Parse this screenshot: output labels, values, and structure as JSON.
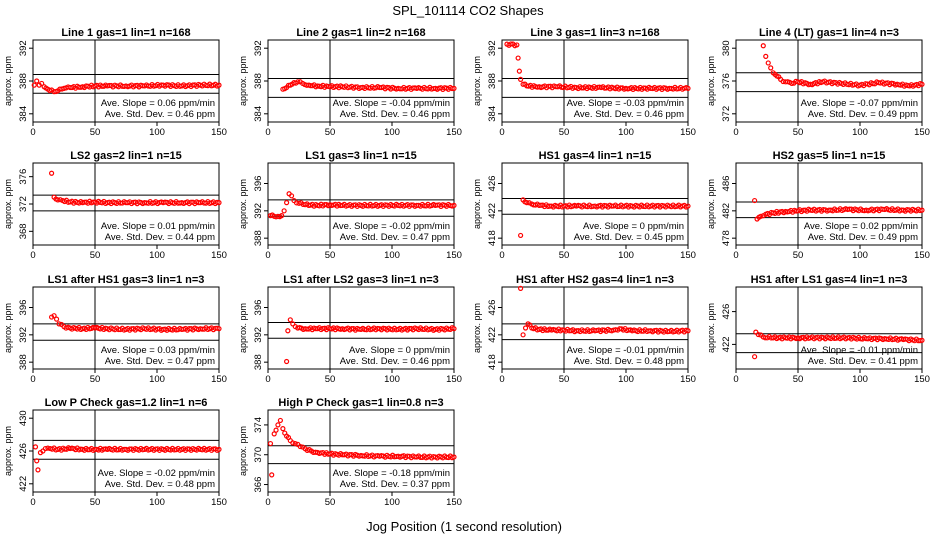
{
  "title": "SPL_101114  CO2 Shapes",
  "xlabel": "Jog Position (1 second resolution)",
  "point_color": "#ff0000",
  "line_color": "#000000",
  "chart_data": [
    {
      "type": "scatter",
      "title": "Line 1 gas=1 lin=1 n=168",
      "ylabel": "approx. ppm",
      "xlim": [
        0,
        150
      ],
      "ylim": [
        383,
        393
      ],
      "yticks": [
        384,
        388,
        392
      ],
      "xticks": [
        0,
        50,
        100,
        150
      ],
      "hlines": [
        388.8,
        386.5
      ],
      "vline": 50,
      "slope": "Ave. Slope = 0.06 ppm/min",
      "std": "Ave. Std. Dev. = 0.46 ppm",
      "points": [
        [
          1,
          387.5
        ],
        [
          3,
          388.0
        ],
        [
          5,
          387.5
        ],
        [
          7,
          387.7
        ],
        [
          9,
          387.3
        ],
        [
          12,
          387.0
        ],
        [
          15,
          386.9
        ],
        [
          17,
          386.7
        ],
        [
          20,
          386.8
        ],
        [
          25,
          387.1
        ],
        [
          30,
          387.2
        ],
        [
          40,
          387.3
        ],
        [
          50,
          387.4
        ],
        [
          60,
          387.4
        ],
        [
          75,
          387.4
        ],
        [
          90,
          387.4
        ],
        [
          105,
          387.5
        ],
        [
          120,
          387.4
        ],
        [
          135,
          387.5
        ],
        [
          150,
          387.5
        ]
      ]
    },
    {
      "type": "scatter",
      "title": "Line 2 gas=1 lin=2 n=168",
      "ylabel": "approx. ppm",
      "xlim": [
        0,
        150
      ],
      "ylim": [
        383,
        393
      ],
      "yticks": [
        384,
        388,
        392
      ],
      "xticks": [
        0,
        50,
        100,
        150
      ],
      "hlines": [
        388.3,
        386.0
      ],
      "vline": 50,
      "slope": "Ave. Slope = -0.04 ppm/min",
      "std": "Ave. Std. Dev. = 0.46 ppm",
      "points": [
        [
          12,
          387.0
        ],
        [
          15,
          387.2
        ],
        [
          18,
          387.5
        ],
        [
          21,
          387.8
        ],
        [
          24,
          387.9
        ],
        [
          28,
          387.7
        ],
        [
          33,
          387.5
        ],
        [
          40,
          387.4
        ],
        [
          50,
          387.3
        ],
        [
          60,
          387.3
        ],
        [
          75,
          387.2
        ],
        [
          90,
          387.2
        ],
        [
          105,
          387.1
        ],
        [
          120,
          387.1
        ],
        [
          135,
          387.1
        ],
        [
          150,
          387.1
        ]
      ]
    },
    {
      "type": "scatter",
      "title": "Line 3 gas=1 lin=3 n=168",
      "ylabel": "approx. ppm",
      "xlim": [
        0,
        150
      ],
      "ylim": [
        383,
        393
      ],
      "yticks": [
        384,
        388,
        392
      ],
      "xticks": [
        0,
        50,
        100,
        150
      ],
      "hlines": [
        388.3,
        386.0
      ],
      "vline": 50,
      "slope": "Ave. Slope = -0.03 ppm/min",
      "std": "Ave. Std. Dev. = 0.46 ppm",
      "points": [
        [
          4,
          392.5
        ],
        [
          12,
          392.4
        ],
        [
          13,
          390.8
        ],
        [
          14,
          389.2
        ],
        [
          15,
          388.2
        ],
        [
          17,
          387.6
        ],
        [
          20,
          387.4
        ],
        [
          30,
          387.3
        ],
        [
          45,
          387.3
        ],
        [
          60,
          387.2
        ],
        [
          80,
          387.2
        ],
        [
          100,
          387.1
        ],
        [
          120,
          387.1
        ],
        [
          135,
          387.1
        ],
        [
          150,
          387.1
        ]
      ]
    },
    {
      "type": "scatter",
      "title": "Line 4 (LT) gas=1 lin=4 n=3",
      "ylabel": "approx. ppm",
      "xlim": [
        0,
        150
      ],
      "ylim": [
        371,
        381
      ],
      "yticks": [
        372,
        376,
        380
      ],
      "xticks": [
        0,
        50,
        100,
        150
      ],
      "hlines": [
        377.0,
        374.7
      ],
      "vline": 50,
      "slope": "Ave. Slope = -0.07 ppm/min",
      "std": "Ave. Std. Dev. = 0.49 ppm",
      "points": [
        [
          22,
          380.3
        ],
        [
          24,
          379.0
        ],
        [
          26,
          378.2
        ],
        [
          28,
          377.6
        ],
        [
          30,
          377.0
        ],
        [
          33,
          376.6
        ],
        [
          36,
          376.2
        ],
        [
          40,
          375.9
        ],
        [
          45,
          375.7
        ],
        [
          50,
          375.9
        ],
        [
          60,
          375.6
        ],
        [
          70,
          375.9
        ],
        [
          85,
          375.7
        ],
        [
          100,
          375.5
        ],
        [
          115,
          375.8
        ],
        [
          130,
          375.6
        ],
        [
          140,
          375.4
        ],
        [
          150,
          375.6
        ]
      ]
    },
    {
      "type": "scatter",
      "title": "LS2 gas=2 lin=1 n=15",
      "ylabel": "approx. ppm",
      "xlim": [
        0,
        150
      ],
      "ylim": [
        366,
        378
      ],
      "yticks": [
        368,
        372,
        376
      ],
      "xticks": [
        0,
        50,
        100,
        150
      ],
      "hlines": [
        373.3,
        371.0
      ],
      "vline": 50,
      "slope": "Ave. Slope = 0.01 ppm/min",
      "std": "Ave. Std. Dev. = 0.44 ppm",
      "points": [
        [
          15,
          376.5
        ],
        [
          17,
          373.0
        ],
        [
          20,
          372.6
        ],
        [
          24,
          372.5
        ],
        [
          30,
          372.3
        ],
        [
          40,
          372.2
        ],
        [
          50,
          372.3
        ],
        [
          60,
          372.2
        ],
        [
          75,
          372.2
        ],
        [
          90,
          372.2
        ],
        [
          105,
          372.2
        ],
        [
          120,
          372.2
        ],
        [
          135,
          372.2
        ],
        [
          150,
          372.2
        ]
      ]
    },
    {
      "type": "scatter",
      "title": "LS1 gas=3 lin=1 n=15",
      "ylabel": "approx. ppm",
      "xlim": [
        0,
        150
      ],
      "ylim": [
        387,
        399
      ],
      "yticks": [
        388,
        392,
        396
      ],
      "xticks": [
        0,
        50,
        100,
        150
      ],
      "hlines": [
        393.6,
        391.2
      ],
      "vline": 50,
      "slope": "Ave. Slope = -0.02 ppm/min",
      "std": "Ave. Std. Dev. = 0.47 ppm",
      "points": [
        [
          2,
          391.3
        ],
        [
          5,
          391.2
        ],
        [
          8,
          391.2
        ],
        [
          11,
          391.3
        ],
        [
          13,
          392.0
        ],
        [
          15,
          393.2
        ],
        [
          17,
          394.5
        ],
        [
          19,
          394.2
        ],
        [
          21,
          393.5
        ],
        [
          25,
          393.1
        ],
        [
          30,
          392.9
        ],
        [
          40,
          392.8
        ],
        [
          50,
          392.9
        ],
        [
          60,
          392.8
        ],
        [
          75,
          392.8
        ],
        [
          90,
          392.8
        ],
        [
          105,
          392.8
        ],
        [
          120,
          392.8
        ],
        [
          135,
          392.8
        ],
        [
          150,
          392.8
        ]
      ]
    },
    {
      "type": "scatter",
      "title": "HS1 gas=4 lin=1 n=15",
      "ylabel": "approx. ppm",
      "xlim": [
        0,
        150
      ],
      "ylim": [
        417,
        429
      ],
      "yticks": [
        418,
        422,
        426
      ],
      "xticks": [
        0,
        50,
        100,
        150
      ],
      "hlines": [
        423.8,
        421.5
      ],
      "vline": 50,
      "slope": "Ave. Slope = 0 ppm/min",
      "std": "Ave. Std. Dev. = 0.45 ppm",
      "points": [
        [
          15,
          418.4
        ],
        [
          17,
          423.6
        ],
        [
          20,
          423.2
        ],
        [
          24,
          423.0
        ],
        [
          30,
          422.8
        ],
        [
          40,
          422.7
        ],
        [
          50,
          422.7
        ],
        [
          60,
          422.7
        ],
        [
          75,
          422.7
        ],
        [
          90,
          422.7
        ],
        [
          105,
          422.7
        ],
        [
          120,
          422.7
        ],
        [
          135,
          422.7
        ],
        [
          150,
          422.7
        ]
      ]
    },
    {
      "type": "scatter",
      "title": "HS2 gas=5 lin=1 n=15",
      "ylabel": "approx. ppm",
      "xlim": [
        0,
        150
      ],
      "ylim": [
        477,
        489
      ],
      "yticks": [
        478,
        482,
        486
      ],
      "xticks": [
        0,
        50,
        100,
        150
      ],
      "hlines": [
        483.3,
        481.0
      ],
      "vline": 50,
      "slope": "Ave. Slope = 0.02 ppm/min",
      "std": "Ave. Std. Dev. = 0.49 ppm",
      "points": [
        [
          15,
          483.5
        ],
        [
          17,
          480.8
        ],
        [
          20,
          481.2
        ],
        [
          24,
          481.5
        ],
        [
          30,
          481.7
        ],
        [
          40,
          481.9
        ],
        [
          50,
          482.0
        ],
        [
          60,
          482.1
        ],
        [
          75,
          482.1
        ],
        [
          90,
          482.2
        ],
        [
          105,
          482.1
        ],
        [
          120,
          482.2
        ],
        [
          135,
          482.1
        ],
        [
          150,
          482.1
        ]
      ]
    },
    {
      "type": "scatter",
      "title": "LS1 after HS1 gas=3 lin=1 n=3",
      "ylabel": "approx. ppm",
      "xlim": [
        0,
        150
      ],
      "ylim": [
        387,
        399
      ],
      "yticks": [
        388,
        392,
        396
      ],
      "xticks": [
        0,
        50,
        100,
        150
      ],
      "hlines": [
        393.6,
        391.2
      ],
      "vline": 50,
      "slope": "Ave. Slope = 0.03 ppm/min",
      "std": "Ave. Std. Dev. = 0.47 ppm",
      "points": [
        [
          15,
          394.6
        ],
        [
          17,
          394.8
        ],
        [
          19,
          394.3
        ],
        [
          21,
          393.6
        ],
        [
          25,
          393.2
        ],
        [
          30,
          393.0
        ],
        [
          40,
          392.9
        ],
        [
          50,
          393.0
        ],
        [
          60,
          392.9
        ],
        [
          75,
          392.8
        ],
        [
          90,
          392.9
        ],
        [
          105,
          392.8
        ],
        [
          120,
          392.8
        ],
        [
          135,
          392.9
        ],
        [
          150,
          392.9
        ]
      ]
    },
    {
      "type": "scatter",
      "title": "LS1 after LS2 gas=3 lin=1 n=3",
      "ylabel": "approx. ppm",
      "xlim": [
        0,
        150
      ],
      "ylim": [
        387,
        399
      ],
      "yticks": [
        388,
        392,
        396
      ],
      "xticks": [
        0,
        50,
        100,
        150
      ],
      "hlines": [
        393.8,
        391.5
      ],
      "vline": 50,
      "slope": "Ave. Slope = 0 ppm/min",
      "std": "Ave. Std. Dev. = 0.46 ppm",
      "points": [
        [
          15,
          388.1
        ],
        [
          16,
          392.6
        ],
        [
          18,
          394.2
        ],
        [
          20,
          393.6
        ],
        [
          24,
          393.0
        ],
        [
          30,
          392.9
        ],
        [
          40,
          392.9
        ],
        [
          50,
          392.9
        ],
        [
          60,
          392.9
        ],
        [
          75,
          392.8
        ],
        [
          90,
          392.9
        ],
        [
          105,
          392.8
        ],
        [
          120,
          392.9
        ],
        [
          135,
          392.8
        ],
        [
          150,
          392.9
        ]
      ]
    },
    {
      "type": "scatter",
      "title": "HS1 after HS2 gas=4 lin=1 n=3",
      "ylabel": "approx. ppm",
      "xlim": [
        0,
        150
      ],
      "ylim": [
        417,
        429
      ],
      "yticks": [
        418,
        422,
        426
      ],
      "xticks": [
        0,
        50,
        100,
        150
      ],
      "hlines": [
        423.6,
        421.3
      ],
      "vline": 50,
      "slope": "Ave. Slope = -0.01 ppm/min",
      "std": "Ave. Std. Dev. = 0.48 ppm",
      "points": [
        [
          15,
          428.8
        ],
        [
          17,
          422.0
        ],
        [
          19,
          423.0
        ],
        [
          21,
          423.6
        ],
        [
          24,
          423.0
        ],
        [
          30,
          422.8
        ],
        [
          40,
          422.7
        ],
        [
          50,
          422.7
        ],
        [
          60,
          422.6
        ],
        [
          75,
          422.6
        ],
        [
          90,
          422.7
        ],
        [
          95,
          422.9
        ],
        [
          105,
          422.6
        ],
        [
          120,
          422.6
        ],
        [
          135,
          422.5
        ],
        [
          150,
          422.6
        ]
      ]
    },
    {
      "type": "scatter",
      "title": "HS1 after LS1 gas=4 lin=1 n=3",
      "ylabel": "approx. ppm",
      "xlim": [
        0,
        150
      ],
      "ylim": [
        419,
        429
      ],
      "yticks": [
        422,
        426
      ],
      "xticks": [
        0,
        50,
        100,
        150
      ],
      "hlines": [
        423.3,
        421.0
      ],
      "vline": 50,
      "slope": "Ave. Slope = -0.01 ppm/min",
      "std": "Ave. Std. Dev. = 0.41 ppm",
      "points": [
        [
          15,
          420.5
        ],
        [
          16,
          423.5
        ],
        [
          18,
          423.2
        ],
        [
          22,
          422.9
        ],
        [
          30,
          422.8
        ],
        [
          40,
          422.8
        ],
        [
          50,
          422.8
        ],
        [
          60,
          422.8
        ],
        [
          75,
          422.8
        ],
        [
          90,
          422.8
        ],
        [
          105,
          422.7
        ],
        [
          120,
          422.7
        ],
        [
          135,
          422.6
        ],
        [
          150,
          422.5
        ]
      ]
    },
    {
      "type": "scatter",
      "title": "Low P Check gas=1.2 lin=1 n=6",
      "ylabel": "approx. ppm",
      "xlim": [
        0,
        150
      ],
      "ylim": [
        421,
        431
      ],
      "yticks": [
        422,
        426,
        430
      ],
      "xticks": [
        0,
        50,
        100,
        150
      ],
      "hlines": [
        427.3,
        425.0
      ],
      "vline": 50,
      "slope": "Ave. Slope = -0.02 ppm/min",
      "std": "Ave. Std. Dev. = 0.48 ppm",
      "points": [
        [
          2,
          426.5
        ],
        [
          3,
          424.8
        ],
        [
          4,
          423.7
        ],
        [
          6,
          425.8
        ],
        [
          8,
          426.0
        ],
        [
          10,
          426.3
        ],
        [
          14,
          426.3
        ],
        [
          20,
          426.2
        ],
        [
          30,
          426.3
        ],
        [
          40,
          426.2
        ],
        [
          50,
          426.2
        ],
        [
          60,
          426.2
        ],
        [
          75,
          426.2
        ],
        [
          90,
          426.2
        ],
        [
          105,
          426.2
        ],
        [
          120,
          426.2
        ],
        [
          135,
          426.2
        ],
        [
          150,
          426.2
        ]
      ]
    },
    {
      "type": "scatter",
      "title": "High P Check gas=1 lin=0.8 n=3",
      "ylabel": "approx. ppm",
      "xlim": [
        0,
        150
      ],
      "ylim": [
        365,
        376
      ],
      "yticks": [
        366,
        370,
        374
      ],
      "xticks": [
        0,
        50,
        100,
        150
      ],
      "hlines": [
        371.2,
        368.8
      ],
      "vline": 50,
      "slope": "Ave. Slope = -0.18 ppm/min",
      "std": "Ave. Std. Dev. = 0.37 ppm",
      "points": [
        [
          2,
          371.5
        ],
        [
          3,
          367.3
        ],
        [
          5,
          372.8
        ],
        [
          8,
          374.0
        ],
        [
          10,
          374.6
        ],
        [
          12,
          373.5
        ],
        [
          15,
          372.5
        ],
        [
          18,
          371.9
        ],
        [
          22,
          371.5
        ],
        [
          26,
          371.1
        ],
        [
          30,
          370.8
        ],
        [
          35,
          370.5
        ],
        [
          40,
          370.3
        ],
        [
          50,
          370.1
        ],
        [
          60,
          370.0
        ],
        [
          75,
          369.9
        ],
        [
          90,
          369.8
        ],
        [
          105,
          369.8
        ],
        [
          120,
          369.7
        ],
        [
          135,
          369.7
        ],
        [
          150,
          369.7
        ]
      ]
    }
  ]
}
